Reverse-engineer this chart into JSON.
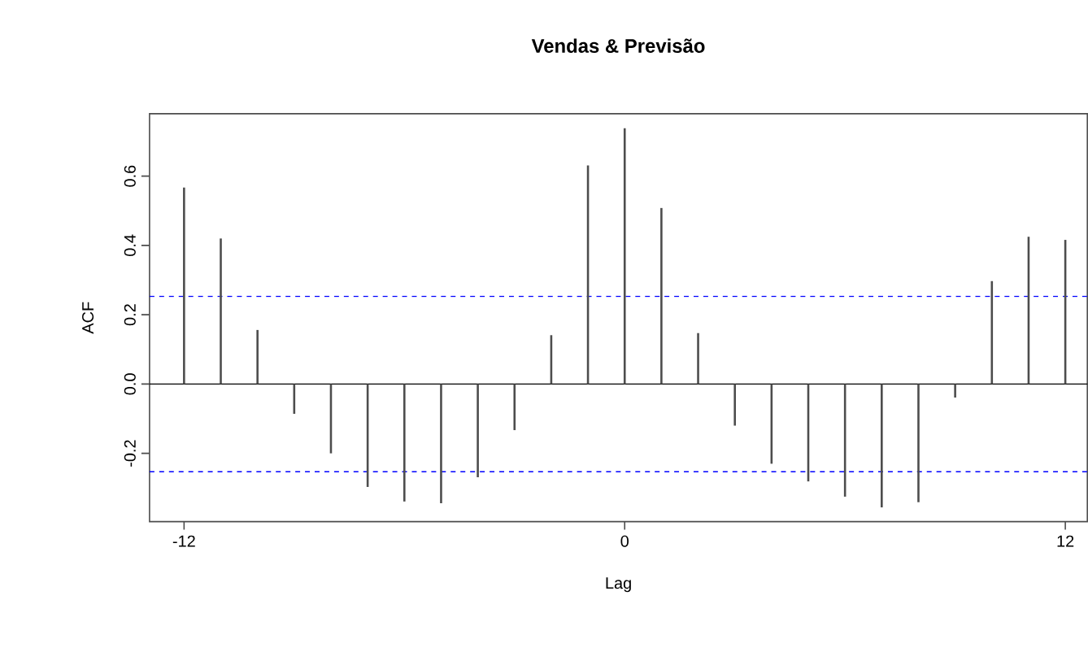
{
  "chart_data": {
    "type": "bar",
    "title": "Vendas & Previsão",
    "xlabel": "Lag",
    "ylabel": "ACF",
    "x": [
      -12,
      -11,
      -10,
      -9,
      -8,
      -7,
      -6,
      -5,
      -4,
      -3,
      -2,
      -1,
      0,
      1,
      2,
      3,
      4,
      5,
      6,
      7,
      8,
      9,
      10,
      11,
      12
    ],
    "values": [
      0.567,
      0.42,
      0.156,
      -0.086,
      -0.2,
      -0.297,
      -0.339,
      -0.344,
      -0.269,
      -0.133,
      0.141,
      0.631,
      0.738,
      0.508,
      0.147,
      -0.12,
      -0.23,
      -0.281,
      -0.325,
      -0.356,
      -0.341,
      -0.039,
      0.297,
      0.425,
      0.416
    ],
    "color": "#4d4d4d",
    "xlim": [
      -12.94,
      12.6
    ],
    "ylim": [
      -0.397,
      0.78
    ],
    "xticks": [
      -12,
      0,
      12
    ],
    "yticks": [
      -0.2,
      {
        "value": 0,
        "label": "0.0"
      },
      0.2,
      0.4,
      0.6
    ],
    "ref_lines": [
      {
        "axis": "y",
        "value": 0,
        "color": "#000000",
        "line_style": "solid"
      },
      {
        "axis": "y",
        "value": 0.253,
        "color": "#0000ff",
        "line_style": "dashed"
      },
      {
        "axis": "y",
        "value": -0.253,
        "color": "#0000ff",
        "line_style": "dashed"
      }
    ],
    "grid": false
  }
}
